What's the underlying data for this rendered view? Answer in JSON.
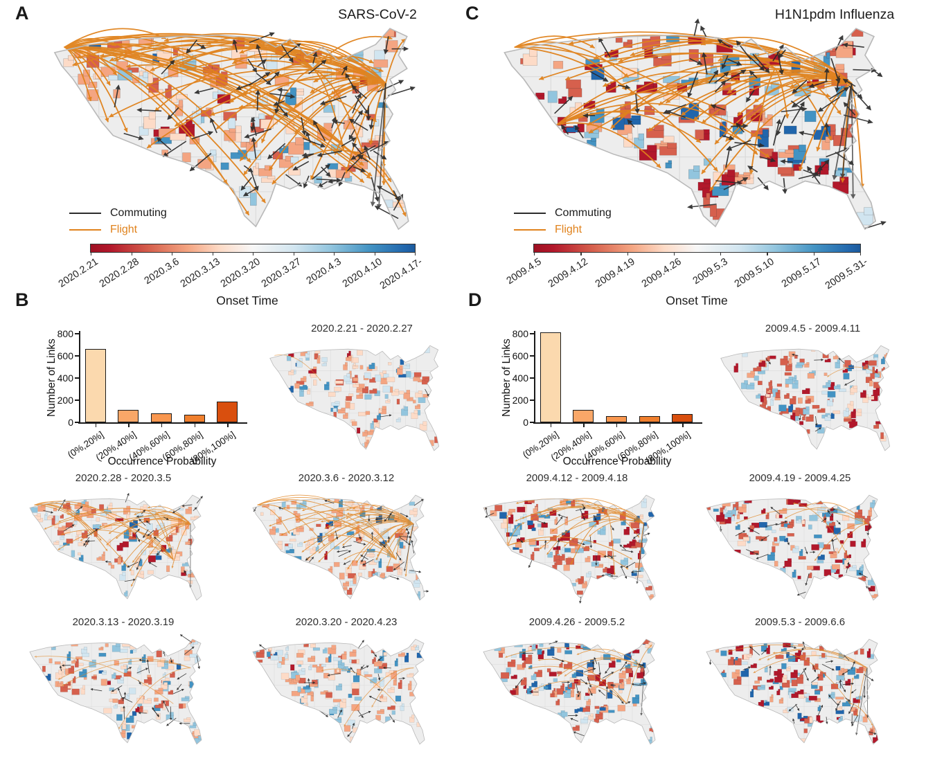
{
  "figure": {
    "panel_a": {
      "label": "A",
      "title": "SARS-CoV-2",
      "legend": {
        "commuting": "Commuting",
        "flight": "Flight"
      },
      "colorbar_ticks": [
        "2020.2.21",
        "2020.2.28",
        "2020.3.6",
        "2020.3.13",
        "2020.3.20",
        "2020.3.27",
        "2020.4.3",
        "2020.4.10",
        "2020.4.17-"
      ],
      "axis_label": "Onset Time"
    },
    "panel_c": {
      "label": "C",
      "title": "H1N1pdm Influenza",
      "legend": {
        "commuting": "Commuting",
        "flight": "Flight"
      },
      "colorbar_ticks": [
        "2009.4.5",
        "2009.4.12",
        "2009.4.19",
        "2009.4.26",
        "2009.5.3",
        "2009.5.10",
        "2009.5.17",
        "2009.5.31-"
      ],
      "axis_label": "Onset Time"
    },
    "panel_b": {
      "label": "B",
      "maps": [
        {
          "title": "2020.2.21 - 2020.2.27"
        },
        {
          "title": "2020.2.28 - 2020.3.5"
        },
        {
          "title": "2020.3.6 - 2020.3.12"
        },
        {
          "title": "2020.3.13 - 2020.3.19"
        },
        {
          "title": "2020.3.20 - 2020.4.23"
        }
      ]
    },
    "panel_d": {
      "label": "D",
      "maps": [
        {
          "title": "2009.4.5 - 2009.4.11"
        },
        {
          "title": "2009.4.12 - 2009.4.18"
        },
        {
          "title": "2009.4.19 - 2009.4.25"
        },
        {
          "title": "2009.4.26 - 2009.5.2"
        },
        {
          "title": "2009.5.3 - 2009.6.6"
        }
      ]
    }
  },
  "chart_data": [
    {
      "type": "bar",
      "panel": "B",
      "categories": [
        "(0%,20%]",
        "(20%,40%]",
        "(40%,60%]",
        "(60%,80%]",
        "(80%,100%]"
      ],
      "values": [
        665,
        110,
        80,
        70,
        190
      ],
      "xlabel": "Occurrence Probability",
      "ylabel": "Number of Links",
      "ylim": [
        0,
        800
      ],
      "yticks": [
        0,
        200,
        400,
        600,
        800
      ],
      "bar_colors": [
        "#fbd9ae",
        "#f9a768",
        "#f9974f",
        "#f07f2d",
        "#d94f0e"
      ],
      "grid": false,
      "legend": "none"
    },
    {
      "type": "bar",
      "panel": "D",
      "categories": [
        "(0%,20%]",
        "(20%,40%]",
        "(40%,60%]",
        "(60%,80%]",
        "(80%,100%]"
      ],
      "values": [
        810,
        115,
        55,
        55,
        75
      ],
      "xlabel": "Occurrence Probability",
      "ylabel": "Number of Links",
      "ylim": [
        0,
        800
      ],
      "yticks": [
        0,
        200,
        400,
        600,
        800
      ],
      "bar_colors": [
        "#fbd9ae",
        "#f9a768",
        "#f9974f",
        "#f07f2d",
        "#d94f0e"
      ],
      "grid": false,
      "legend": "none"
    }
  ],
  "colors": {
    "flight": "#e0821c",
    "commuting": "#2b2b2b",
    "map_fill": "#ededed",
    "map_border": "#b9b9b9",
    "state_line": "#d9d9d9",
    "reds": [
      "#b2182b",
      "#d6604d",
      "#f4a582",
      "#fddbc7"
    ],
    "blues": [
      "#2166ac",
      "#4393c3",
      "#92c5de",
      "#d1e5f0"
    ],
    "colorbar_endpoints": [
      "#b2182b",
      "#f7f7f7",
      "#2166ac"
    ]
  }
}
